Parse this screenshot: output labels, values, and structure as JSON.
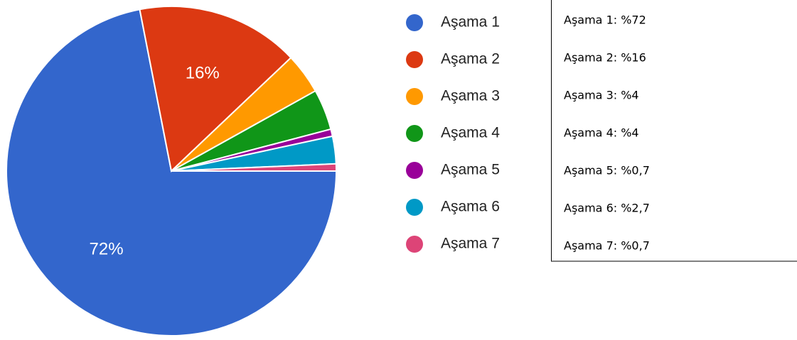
{
  "chart_data": {
    "type": "pie",
    "categories": [
      "Aşama 1",
      "Aşama 2",
      "Aşama 3",
      "Aşama 4",
      "Aşama 5",
      "Aşama 6",
      "Aşama 7"
    ],
    "values": [
      72,
      16,
      4,
      4,
      0.7,
      2.7,
      0.7
    ],
    "value_labels": [
      "72%",
      "16%",
      null,
      null,
      null,
      null,
      null
    ],
    "colors": [
      "#3366cc",
      "#dc3912",
      "#ff9900",
      "#109618",
      "#990099",
      "#0099c6",
      "#dd4477"
    ],
    "legend": "right"
  },
  "box": {
    "lines": [
      "Aşama 1: %72",
      "Aşama 2: %16",
      "Aşama 3: %4",
      "Aşama 4: %4",
      "Aşama 5: %0,7",
      "Aşama 6: %2,7",
      "Aşama 7: %0,7"
    ]
  }
}
